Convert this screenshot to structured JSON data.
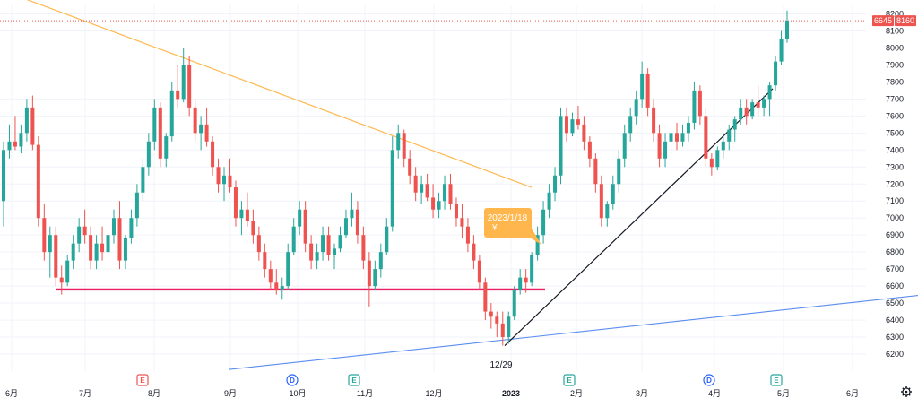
{
  "colors": {
    "up": "#26a69a",
    "down": "#ef5350",
    "grid": "#f0f3fa",
    "axis_text": "#131722",
    "support_line": "#e91e63",
    "resistance_line": "#ffb74d",
    "trend_line_black": "#131722",
    "trend_line_blue": "#5b8def",
    "callout_bg": "#ffb74d",
    "last_price_line": "#ef5350",
    "event_E": "#ef5350",
    "event_E_green": "#26a69a",
    "event_D": "#2962ff"
  },
  "chart_data": {
    "type": "candlestick",
    "ylim": [
      6100,
      8250
    ],
    "y_ticks": [
      6200,
      6300,
      6400,
      6500,
      6600,
      6700,
      6800,
      6900,
      7000,
      7100,
      7200,
      7300,
      7400,
      7500,
      7600,
      7700,
      7800,
      7900,
      8000,
      8100,
      8200
    ],
    "x_ticks": [
      {
        "label": "6月",
        "year": false
      },
      {
        "label": "7月",
        "year": false
      },
      {
        "label": "8月",
        "year": false
      },
      {
        "label": "9月",
        "year": false
      },
      {
        "label": "10月",
        "year": false
      },
      {
        "label": "11月",
        "year": false
      },
      {
        "label": "12月",
        "year": false
      },
      {
        "label": "2023",
        "year": true
      },
      {
        "label": "2月",
        "year": false
      },
      {
        "label": "3月",
        "year": false
      },
      {
        "label": "4月",
        "year": false
      },
      {
        "label": "5月",
        "year": false
      },
      {
        "label": "6月",
        "year": false
      }
    ],
    "last_price": 8160,
    "price_labels": [
      "6645",
      "8160"
    ],
    "annotations": {
      "low_date": "12/29",
      "callout_text": "2023/1/18",
      "callout_sub": "¥"
    },
    "events": [
      {
        "label": "E",
        "kind": "earnings-red"
      },
      {
        "label": "D",
        "kind": "dividend"
      },
      {
        "label": "E",
        "kind": "earnings-green"
      },
      {
        "label": "E",
        "kind": "earnings-green"
      },
      {
        "label": "D",
        "kind": "dividend"
      },
      {
        "label": "E",
        "kind": "earnings-green"
      }
    ],
    "support_level": 6580,
    "candles": [
      [
        7100,
        7450,
        6950,
        7400
      ],
      [
        7400,
        7550,
        7350,
        7450
      ],
      [
        7450,
        7600,
        7400,
        7420
      ],
      [
        7420,
        7550,
        7380,
        7500
      ],
      [
        7500,
        7700,
        7450,
        7650
      ],
      [
        7650,
        7720,
        7400,
        7430
      ],
      [
        7430,
        7480,
        6950,
        7000
      ],
      [
        7000,
        7080,
        6750,
        6800
      ],
      [
        6800,
        6950,
        6650,
        6900
      ],
      [
        6900,
        6950,
        6600,
        6650
      ],
      [
        6650,
        6720,
        6550,
        6620
      ],
      [
        6620,
        6780,
        6600,
        6750
      ],
      [
        6750,
        6900,
        6700,
        6850
      ],
      [
        6850,
        7000,
        6800,
        6950
      ],
      [
        6950,
        7050,
        6850,
        6900
      ],
      [
        6900,
        6950,
        6700,
        6750
      ],
      [
        6750,
        6900,
        6700,
        6850
      ],
      [
        6850,
        6950,
        6750,
        6800
      ],
      [
        6800,
        6920,
        6780,
        6900
      ],
      [
        6900,
        7050,
        6850,
        7000
      ],
      [
        7000,
        7100,
        6700,
        6750
      ],
      [
        6750,
        6900,
        6700,
        6880
      ],
      [
        6880,
        7050,
        6850,
        7000
      ],
      [
        7000,
        7200,
        6950,
        7150
      ],
      [
        7150,
        7350,
        7100,
        7300
      ],
      [
        7300,
        7500,
        7250,
        7450
      ],
      [
        7450,
        7700,
        7400,
        7650
      ],
      [
        7650,
        7680,
        7300,
        7350
      ],
      [
        7350,
        7500,
        7300,
        7480
      ],
      [
        7480,
        7800,
        7450,
        7750
      ],
      [
        7750,
        7900,
        7650,
        7700
      ],
      [
        7700,
        8000,
        7680,
        7900
      ],
      [
        7900,
        7950,
        7600,
        7650
      ],
      [
        7650,
        7700,
        7450,
        7500
      ],
      [
        7500,
        7600,
        7400,
        7550
      ],
      [
        7550,
        7650,
        7420,
        7450
      ],
      [
        7450,
        7480,
        7250,
        7300
      ],
      [
        7300,
        7350,
        7150,
        7200
      ],
      [
        7200,
        7300,
        7100,
        7250
      ],
      [
        7250,
        7350,
        7150,
        7180
      ],
      [
        7180,
        7220,
        6950,
        7000
      ],
      [
        7000,
        7100,
        6900,
        7050
      ],
      [
        7050,
        7150,
        6950,
        6980
      ],
      [
        6980,
        7050,
        6850,
        6900
      ],
      [
        6900,
        6950,
        6750,
        6800
      ],
      [
        6800,
        6850,
        6650,
        6700
      ],
      [
        6700,
        6750,
        6580,
        6620
      ],
      [
        6620,
        6700,
        6550,
        6580
      ],
      [
        6580,
        6650,
        6520,
        6600
      ],
      [
        6600,
        6850,
        6580,
        6800
      ],
      [
        6800,
        7000,
        6780,
        6950
      ],
      [
        6950,
        7100,
        6900,
        7050
      ],
      [
        7050,
        7100,
        6800,
        6850
      ],
      [
        6850,
        6900,
        6700,
        6750
      ],
      [
        6750,
        6850,
        6700,
        6800
      ],
      [
        6800,
        6950,
        6750,
        6900
      ],
      [
        6900,
        6950,
        6750,
        6780
      ],
      [
        6780,
        6850,
        6700,
        6820
      ],
      [
        6820,
        6950,
        6800,
        6900
      ],
      [
        6900,
        7050,
        6880,
        7000
      ],
      [
        7000,
        7150,
        6950,
        7050
      ],
      [
        7050,
        7100,
        6850,
        6900
      ],
      [
        6900,
        6950,
        6700,
        6750
      ],
      [
        6750,
        6800,
        6480,
        6600
      ],
      [
        6600,
        6750,
        6580,
        6700
      ],
      [
        6700,
        6850,
        6650,
        6800
      ],
      [
        6800,
        7000,
        6780,
        6950
      ],
      [
        6950,
        7480,
        6920,
        7400
      ],
      [
        7400,
        7550,
        7350,
        7500
      ],
      [
        7500,
        7520,
        7300,
        7350
      ],
      [
        7350,
        7400,
        7200,
        7250
      ],
      [
        7250,
        7300,
        7100,
        7150
      ],
      [
        7150,
        7250,
        7080,
        7200
      ],
      [
        7200,
        7260,
        7100,
        7120
      ],
      [
        7120,
        7200,
        7000,
        7050
      ],
      [
        7050,
        7150,
        7000,
        7100
      ],
      [
        7100,
        7250,
        7050,
        7200
      ],
      [
        7200,
        7260,
        7050,
        7080
      ],
      [
        7080,
        7120,
        6950,
        7000
      ],
      [
        7000,
        7080,
        6880,
        6950
      ],
      [
        6950,
        7000,
        6800,
        6850
      ],
      [
        6850,
        6900,
        6700,
        6750
      ],
      [
        6750,
        6780,
        6580,
        6620
      ],
      [
        6620,
        6650,
        6400,
        6450
      ],
      [
        6450,
        6500,
        6350,
        6420
      ],
      [
        6420,
        6450,
        6300,
        6380
      ],
      [
        6380,
        6450,
        6250,
        6300
      ],
      [
        6300,
        6450,
        6260,
        6420
      ],
      [
        6420,
        6600,
        6400,
        6580
      ],
      [
        6580,
        6700,
        6550,
        6650
      ],
      [
        6650,
        6700,
        6560,
        6620
      ],
      [
        6620,
        6800,
        6600,
        6780
      ],
      [
        6780,
        6950,
        6750,
        6900
      ],
      [
        6900,
        7100,
        6850,
        7050
      ],
      [
        7050,
        7200,
        7000,
        7150
      ],
      [
        7150,
        7300,
        7100,
        7250
      ],
      [
        7250,
        7650,
        7200,
        7600
      ],
      [
        7600,
        7650,
        7450,
        7500
      ],
      [
        7500,
        7620,
        7480,
        7580
      ],
      [
        7580,
        7660,
        7520,
        7550
      ],
      [
        7550,
        7600,
        7400,
        7450
      ],
      [
        7450,
        7480,
        7300,
        7350
      ],
      [
        7350,
        7380,
        7150,
        7200
      ],
      [
        7200,
        7250,
        6950,
        7000
      ],
      [
        7000,
        7100,
        6950,
        7080
      ],
      [
        7080,
        7250,
        7050,
        7200
      ],
      [
        7200,
        7400,
        7150,
        7350
      ],
      [
        7350,
        7550,
        7300,
        7500
      ],
      [
        7500,
        7650,
        7450,
        7600
      ],
      [
        7600,
        7750,
        7550,
        7700
      ],
      [
        7700,
        7920,
        7650,
        7850
      ],
      [
        7850,
        7880,
        7600,
        7650
      ],
      [
        7650,
        7700,
        7450,
        7500
      ],
      [
        7500,
        7550,
        7300,
        7350
      ],
      [
        7350,
        7500,
        7300,
        7450
      ],
      [
        7450,
        7550,
        7380,
        7500
      ],
      [
        7500,
        7560,
        7400,
        7450
      ],
      [
        7450,
        7550,
        7420,
        7500
      ],
      [
        7500,
        7600,
        7450,
        7560
      ],
      [
        7560,
        7800,
        7520,
        7750
      ],
      [
        7750,
        7780,
        7550,
        7600
      ],
      [
        7600,
        7650,
        7300,
        7350
      ],
      [
        7350,
        7380,
        7250,
        7300
      ],
      [
        7300,
        7420,
        7280,
        7400
      ],
      [
        7400,
        7500,
        7350,
        7450
      ],
      [
        7450,
        7550,
        7400,
        7520
      ],
      [
        7520,
        7600,
        7450,
        7580
      ],
      [
        7580,
        7700,
        7550,
        7650
      ],
      [
        7650,
        7700,
        7550,
        7600
      ],
      [
        7600,
        7700,
        7580,
        7680
      ],
      [
        7680,
        7780,
        7600,
        7650
      ],
      [
        7650,
        7720,
        7600,
        7700
      ],
      [
        7700,
        7800,
        7600,
        7780
      ],
      [
        7780,
        7950,
        7750,
        7920
      ],
      [
        7920,
        8100,
        7900,
        8050
      ],
      [
        8050,
        8220,
        8030,
        8160
      ]
    ]
  }
}
